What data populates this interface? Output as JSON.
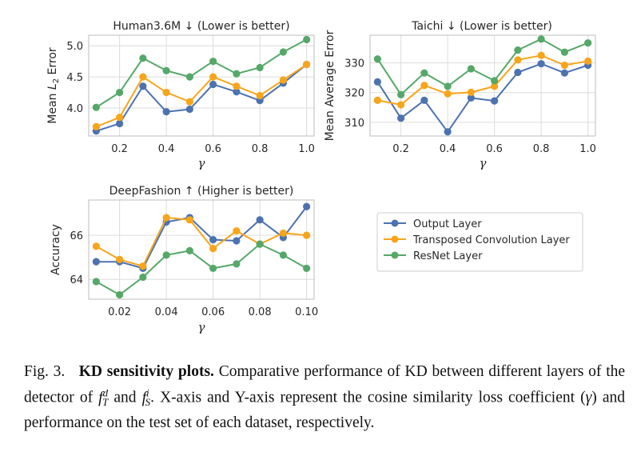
{
  "colors": {
    "output": "#4c72b0",
    "transposed": "#f7a51c",
    "resnet": "#55a868",
    "grid": "#dcdcdc",
    "frame": "#bdbdbd"
  },
  "xlabel": "γ",
  "legend": {
    "placement": "lower-right",
    "entries": [
      "Output Layer",
      "Transposed Convolution Layer",
      "ResNet Layer"
    ]
  },
  "chart_data": [
    {
      "type": "line",
      "title": "Human3.6M ↓  (Lower is better)",
      "xlabel": "γ",
      "ylabel": "Mean L2 Error",
      "ylabel_main": "Mean ",
      "ylabel_sym": "L",
      "ylabel_sub": "2",
      "ylabel_end": " Error",
      "x": [
        0.1,
        0.2,
        0.3,
        0.4,
        0.5,
        0.6,
        0.7,
        0.8,
        0.9,
        1.0
      ],
      "xticks": [
        "0.2",
        "0.4",
        "0.6",
        "0.8",
        "1.0"
      ],
      "xtick_values": [
        0.2,
        0.4,
        0.6,
        0.8,
        1.0
      ],
      "yticks": [
        "4.0",
        "4.5",
        "5.0"
      ],
      "ytick_values": [
        4.0,
        4.5,
        5.0
      ],
      "xlim": [
        0.068,
        1.032
      ],
      "ylim": [
        3.55,
        5.17
      ],
      "grid": true,
      "series": [
        {
          "name": "Output Layer",
          "values": [
            3.63,
            3.75,
            4.35,
            3.94,
            3.98,
            4.38,
            4.26,
            4.12,
            4.4,
            4.7
          ]
        },
        {
          "name": "Transposed Convolution Layer",
          "values": [
            3.7,
            3.85,
            4.5,
            4.25,
            4.1,
            4.5,
            4.35,
            4.2,
            4.45,
            4.7
          ]
        },
        {
          "name": "ResNet Layer",
          "values": [
            4.01,
            4.25,
            4.8,
            4.6,
            4.5,
            4.75,
            4.55,
            4.65,
            4.9,
            5.1
          ]
        }
      ]
    },
    {
      "type": "line",
      "title": "Taichi ↓  (Lower is better)",
      "xlabel": "γ",
      "ylabel": "Mean Average Error",
      "x": [
        0.1,
        0.2,
        0.3,
        0.4,
        0.5,
        0.6,
        0.7,
        0.8,
        0.9,
        1.0
      ],
      "xticks": [
        "0.2",
        "0.4",
        "0.6",
        "0.8",
        "1.0"
      ],
      "xtick_values": [
        0.2,
        0.4,
        0.6,
        0.8,
        1.0
      ],
      "yticks": [
        "310",
        "320",
        "330"
      ],
      "ytick_values": [
        310,
        320,
        330
      ],
      "xlim": [
        0.068,
        1.032
      ],
      "ylim": [
        305.4,
        339.3
      ],
      "grid": true,
      "series": [
        {
          "name": "Output Layer",
          "values": [
            323.6,
            311.4,
            317.4,
            306.8,
            318.2,
            317.2,
            326.8,
            329.7,
            326.6,
            329.2
          ]
        },
        {
          "name": "Transposed Convolution Layer",
          "values": [
            317.4,
            315.9,
            322.4,
            319.6,
            320.1,
            322.1,
            331.0,
            332.5,
            329.2,
            330.6
          ]
        },
        {
          "name": "ResNet Layer",
          "values": [
            331.3,
            319.3,
            326.6,
            322.1,
            328.0,
            324.0,
            334.3,
            338.0,
            333.6,
            336.7
          ]
        }
      ]
    },
    {
      "type": "line",
      "title": "DeepFashion ↑  (Higher is better)",
      "xlabel": "γ",
      "ylabel": "Accuracy",
      "x": [
        0.01,
        0.02,
        0.03,
        0.04,
        0.05,
        0.06,
        0.07,
        0.08,
        0.09,
        0.1
      ],
      "xticks": [
        "0.02",
        "0.04",
        "0.06",
        "0.08",
        "0.10"
      ],
      "xtick_values": [
        0.02,
        0.04,
        0.06,
        0.08,
        0.1
      ],
      "yticks": [
        "64",
        "66"
      ],
      "ytick_values": [
        64,
        66
      ],
      "xlim": [
        0.0068,
        0.1032
      ],
      "ylim": [
        63.1,
        67.6
      ],
      "grid": true,
      "series": [
        {
          "name": "Output Layer",
          "values": [
            64.8,
            64.8,
            64.5,
            66.6,
            66.8,
            65.8,
            65.75,
            66.7,
            65.9,
            67.3
          ]
        },
        {
          "name": "Transposed Convolution Layer",
          "values": [
            65.5,
            64.9,
            64.6,
            66.8,
            66.7,
            65.4,
            66.2,
            65.6,
            66.1,
            66.0
          ]
        },
        {
          "name": "ResNet Layer",
          "values": [
            63.9,
            63.3,
            64.1,
            65.1,
            65.3,
            64.5,
            64.7,
            65.6,
            65.1,
            64.5
          ]
        }
      ]
    }
  ],
  "caption": {
    "fig_label": "Fig. 3.",
    "bold": "KD sensitivity plots.",
    "text_1": " Comparative performance of KD between different layers of the detector of ",
    "sym1_base": "f",
    "sym1_sup": "d",
    "sym1_sub": "T",
    "text_2": " and ",
    "sym2_base": "f",
    "sym2_sup": "i",
    "sym2_sub": "S",
    "text_3": ". X-axis and Y-axis represent the cosine similarity loss coefficient (",
    "gamma": "γ",
    "text_4": ") and performance on the test set of each dataset, respectively."
  }
}
